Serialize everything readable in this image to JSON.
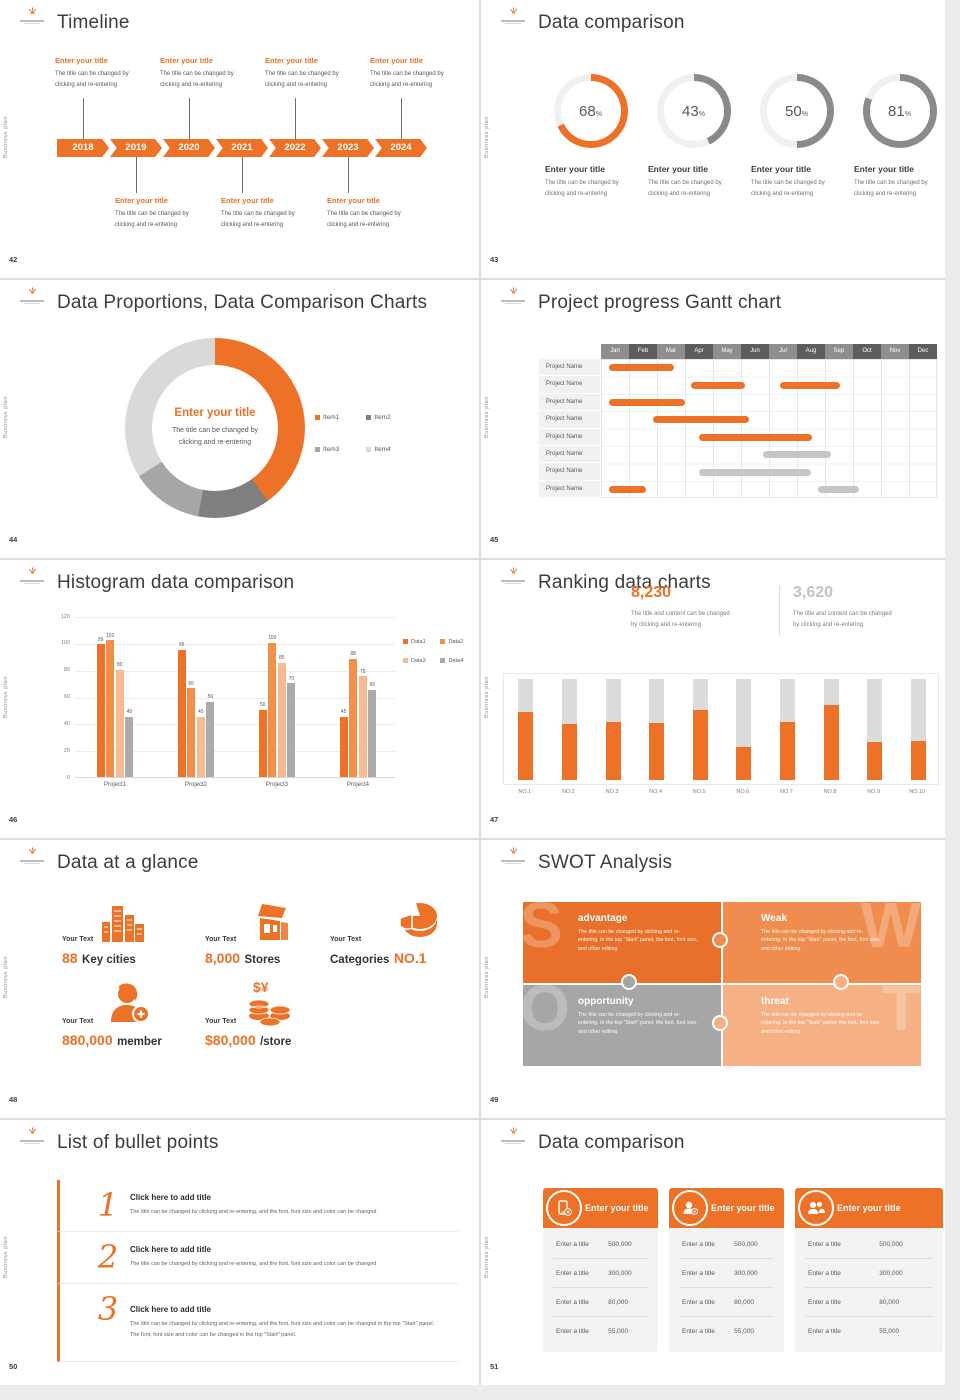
{
  "colors": {
    "accent": "#ED7126",
    "accent_mid": "#F08C4E",
    "accent_light": "#F5B183",
    "gray": "#A6A6A6",
    "gray_light": "#D9D9D9",
    "gray_dark": "#7F7F7F"
  },
  "common": {
    "sidebar_text": "Business plan",
    "placeholder_title": "Enter your title",
    "placeholder_body_1": "The title can be changed by",
    "placeholder_body_2": "clicking and re-entering"
  },
  "slides": {
    "timeline": {
      "number": "42",
      "title": "Timeline",
      "years": [
        "2018",
        "2019",
        "2020",
        "2021",
        "2022",
        "2023",
        "2024"
      ]
    },
    "rings": {
      "number": "43",
      "title": "Data comparison"
    },
    "proportions": {
      "number": "44",
      "title": "Data Proportions, Data Comparison Charts"
    },
    "gantt": {
      "number": "45",
      "title": "Project progress Gantt chart"
    },
    "histogram": {
      "number": "46",
      "title": "Histogram data comparison"
    },
    "ranking": {
      "number": "47",
      "title": "Ranking data charts",
      "stat_1": "8,230",
      "stat_2": "3,620",
      "desc_1": "The title and content can be changed",
      "desc_2": "by clicking and re-entering"
    },
    "glance": {
      "number": "48",
      "title": "Data at a glance",
      "label": "Your Text",
      "icon_money_text": "$¥",
      "items": [
        {
          "num": "88",
          "text": "Key cities"
        },
        {
          "num": "8,000",
          "text": "Stores"
        },
        {
          "pre": "Categories",
          "num": "NO.1"
        },
        {
          "num": "880,000",
          "text": "member"
        },
        {
          "num": "$80,000",
          "text": "/store"
        }
      ]
    },
    "swot": {
      "number": "49",
      "title": "SWOT Analysis",
      "body": "The title can be changed by clicking and re-entering. In the top \"Start\" panel, the font, font size, and other editing",
      "items": [
        {
          "letter": "S",
          "title": "advantage"
        },
        {
          "letter": "W",
          "title": "Weak"
        },
        {
          "letter": "O",
          "title": "opportunity"
        },
        {
          "letter": "T",
          "title": "threat"
        }
      ]
    },
    "bullets": {
      "number": "50",
      "title": "List of bullet points",
      "numbers": [
        "1",
        "2",
        "3"
      ],
      "item_title": "Click here to add title",
      "body_short": "The title can be changed by clicking and re-entering, and the font, font size and color can be changed",
      "body_long": "The title can be changed by clicking and re-entering, and the font, font size and color can be changed in the top \"Start\" panel. The font, font size and color can be changed in the top \"Start\" panel."
    },
    "compare": {
      "number": "51",
      "title": "Data comparison",
      "row_label": "Enter a title",
      "values": [
        "500,000",
        "300,000",
        "80,000",
        "55,000"
      ],
      "icons": [
        "device-add-icon",
        "person-add-icon",
        "people-icon"
      ]
    }
  },
  "chart_data": [
    {
      "id": "rings",
      "type": "donut-progress",
      "values": [
        68,
        43,
        50,
        81
      ],
      "unit": "%",
      "colors": [
        "#ED7126",
        "#8A8A8A",
        "#8A8A8A",
        "#8A8A8A"
      ],
      "track": "#F0F0F0"
    },
    {
      "id": "proportions",
      "type": "pie",
      "labels": [
        "Item1",
        "Item2",
        "Item3",
        "Item4"
      ],
      "values": [
        40,
        13,
        13,
        34
      ],
      "colors": [
        "#ED7126",
        "#7F7F7F",
        "#A6A6A6",
        "#D9D9D9"
      ]
    },
    {
      "id": "gantt",
      "type": "gantt",
      "months": [
        "Jan",
        "Feb",
        "Mar",
        "Apr",
        "May",
        "Jun",
        "Jul",
        "Aug",
        "Sep",
        "Oct",
        "Nov",
        "Dec"
      ],
      "bar_colors": {
        "active": "#ED7126",
        "inactive": "#C6C6C6"
      },
      "rows": [
        {
          "label": "Project Name",
          "bars": [
            {
              "s": 0.3,
              "e": 2.6,
              "c": "active"
            }
          ]
        },
        {
          "label": "Project Name",
          "bars": [
            {
              "s": 3.2,
              "e": 5.15,
              "c": "active"
            },
            {
              "s": 6.4,
              "e": 8.55,
              "c": "active"
            }
          ]
        },
        {
          "label": "Project Name",
          "bars": [
            {
              "s": 0.3,
              "e": 3.0,
              "c": "active"
            }
          ]
        },
        {
          "label": "Project Name",
          "bars": [
            {
              "s": 1.85,
              "e": 5.3,
              "c": "active"
            }
          ]
        },
        {
          "label": "Project Name",
          "bars": [
            {
              "s": 3.5,
              "e": 7.55,
              "c": "active"
            }
          ]
        },
        {
          "label": "Project Name",
          "bars": [
            {
              "s": 5.8,
              "e": 8.2,
              "c": "inactive"
            }
          ]
        },
        {
          "label": "Project Name",
          "bars": [
            {
              "s": 3.5,
              "e": 7.5,
              "c": "inactive"
            }
          ]
        },
        {
          "label": "Project Name",
          "bars": [
            {
              "s": 0.3,
              "e": 1.6,
              "c": "active"
            },
            {
              "s": 7.75,
              "e": 9.2,
              "c": "inactive"
            }
          ]
        }
      ]
    },
    {
      "id": "histogram",
      "type": "bar",
      "categories": [
        "Project1",
        "Project2",
        "Project3",
        "Project4"
      ],
      "series": [
        {
          "name": "Data1",
          "color": "#ED7126",
          "values": [
            99,
            95,
            50,
            45
          ]
        },
        {
          "name": "Data2",
          "color": "#F29049",
          "values": [
            102,
            66,
            100,
            88
          ]
        },
        {
          "name": "Data3",
          "color": "#F7BA92",
          "values": [
            80,
            45,
            85,
            75
          ]
        },
        {
          "name": "Data4",
          "color": "#ABABAB",
          "values": [
            45,
            56,
            70,
            65
          ]
        }
      ],
      "ylim": [
        0,
        120
      ],
      "yticks": [
        0,
        20,
        40,
        60,
        80,
        100,
        120
      ],
      "grid": true,
      "legend_position": "top-right"
    },
    {
      "id": "ranking",
      "type": "bar",
      "categories": [
        "NO.1",
        "NO.2",
        "NO.3",
        "NO.4",
        "NO.5",
        "NO.6",
        "NO.7",
        "NO.8",
        "NO.9",
        "NO.10"
      ],
      "values": [
        67,
        55,
        57,
        56,
        69,
        33,
        57,
        74,
        38,
        39
      ],
      "ylim": [
        0,
        100
      ]
    }
  ]
}
